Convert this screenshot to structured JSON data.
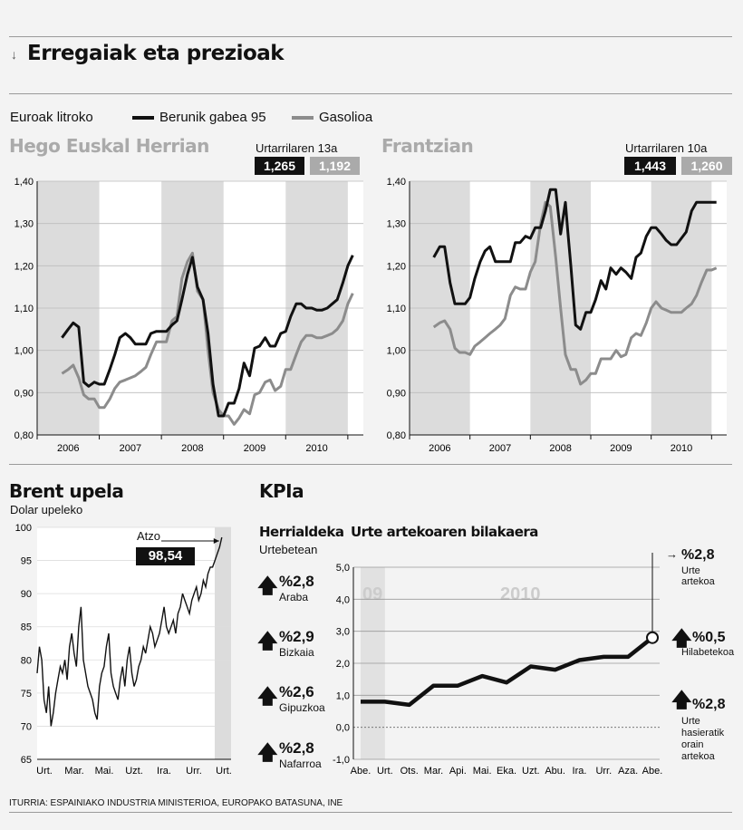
{
  "header": {
    "title": "Erregaiak eta prezioak",
    "arrow_icon": "down-arrow-icon"
  },
  "legend": {
    "unit": "Euroak litroko",
    "series1": "Berunik gabea 95",
    "series2": "Gasolioa"
  },
  "colors": {
    "petrol": "#111111",
    "diesel": "#8c8c8c",
    "shade": "#dcdcdc"
  },
  "chart_data": [
    {
      "id": "hego",
      "type": "line",
      "title": "Hego Euskal Herrian",
      "latest_date": "Urtarrilaren 13a",
      "latest_petrol": "1,265",
      "latest_diesel": "1,192",
      "ylim": [
        0.8,
        1.4
      ],
      "yticks": [
        "0,80",
        "0,90",
        "1,00",
        "1,10",
        "1,20",
        "1,30",
        "1,40"
      ],
      "xlabels": [
        "2006",
        "2007",
        "2008",
        "2009",
        "2010"
      ],
      "xlim": [
        2005.5,
        2010.75
      ],
      "shaded_years": [
        2006,
        2008,
        2010
      ],
      "series": [
        {
          "name": "Berunik gabea 95",
          "x": [
            2005.9,
            2006.0,
            2006.08,
            2006.17,
            2006.25,
            2006.33,
            2006.42,
            2006.5,
            2006.58,
            2006.67,
            2006.75,
            2006.83,
            2006.92,
            2007.0,
            2007.08,
            2007.17,
            2007.25,
            2007.33,
            2007.42,
            2007.5,
            2007.58,
            2007.67,
            2007.75,
            2007.83,
            2007.92,
            2008.0,
            2008.08,
            2008.17,
            2008.25,
            2008.33,
            2008.42,
            2008.5,
            2008.58,
            2008.67,
            2008.75,
            2008.83,
            2008.92,
            2009.0,
            2009.08,
            2009.17,
            2009.25,
            2009.33,
            2009.42,
            2009.5,
            2009.58,
            2009.67,
            2009.75,
            2009.83,
            2009.92,
            2010.0,
            2010.08,
            2010.17,
            2010.25,
            2010.33,
            2010.42,
            2010.5,
            2010.58
          ],
          "y": [
            1.03,
            1.05,
            1.065,
            1.055,
            0.925,
            0.915,
            0.925,
            0.92,
            0.92,
            0.955,
            0.99,
            1.03,
            1.04,
            1.03,
            1.015,
            1.015,
            1.015,
            1.04,
            1.045,
            1.045,
            1.045,
            1.06,
            1.07,
            1.12,
            1.18,
            1.22,
            1.15,
            1.12,
            1.04,
            0.92,
            0.845,
            0.845,
            0.875,
            0.875,
            0.91,
            0.97,
            0.94,
            1.005,
            1.01,
            1.03,
            1.01,
            1.01,
            1.04,
            1.045,
            1.08,
            1.11,
            1.11,
            1.1,
            1.1,
            1.095,
            1.095,
            1.1,
            1.11,
            1.12,
            1.16,
            1.2,
            1.225
          ]
        },
        {
          "name": "Gasolioa",
          "x": [
            2005.9,
            2006.0,
            2006.08,
            2006.17,
            2006.25,
            2006.33,
            2006.42,
            2006.5,
            2006.58,
            2006.67,
            2006.75,
            2006.83,
            2006.92,
            2007.0,
            2007.08,
            2007.17,
            2007.25,
            2007.33,
            2007.42,
            2007.5,
            2007.58,
            2007.67,
            2007.75,
            2007.83,
            2007.92,
            2008.0,
            2008.08,
            2008.17,
            2008.25,
            2008.33,
            2008.42,
            2008.5,
            2008.58,
            2008.67,
            2008.75,
            2008.83,
            2008.92,
            2009.0,
            2009.08,
            2009.17,
            2009.25,
            2009.33,
            2009.42,
            2009.5,
            2009.58,
            2009.67,
            2009.75,
            2009.83,
            2009.92,
            2010.0,
            2010.08,
            2010.17,
            2010.25,
            2010.33,
            2010.42,
            2010.5,
            2010.58
          ],
          "y": [
            0.945,
            0.955,
            0.965,
            0.935,
            0.895,
            0.885,
            0.885,
            0.865,
            0.865,
            0.885,
            0.91,
            0.925,
            0.93,
            0.935,
            0.94,
            0.95,
            0.96,
            0.99,
            1.02,
            1.02,
            1.02,
            1.07,
            1.08,
            1.17,
            1.21,
            1.23,
            1.14,
            1.12,
            1.0,
            0.9,
            0.86,
            0.845,
            0.845,
            0.825,
            0.84,
            0.86,
            0.85,
            0.895,
            0.9,
            0.925,
            0.93,
            0.905,
            0.915,
            0.955,
            0.955,
            0.99,
            1.02,
            1.035,
            1.035,
            1.03,
            1.03,
            1.035,
            1.04,
            1.05,
            1.07,
            1.11,
            1.135
          ]
        }
      ]
    },
    {
      "id": "frantzia",
      "type": "line",
      "title": "Frantzian",
      "latest_date": "Urtarrilaren 10a",
      "latest_petrol": "1,443",
      "latest_diesel": "1,260",
      "ylim": [
        0.8,
        1.4
      ],
      "yticks": [
        "0,80",
        "0,90",
        "1,00",
        "1,10",
        "1,20",
        "1,30",
        "1,40"
      ],
      "xlabels": [
        "2006",
        "2007",
        "2008",
        "2009",
        "2010"
      ],
      "xlim": [
        2005.5,
        2010.75
      ],
      "shaded_years": [
        2006,
        2008,
        2010
      ],
      "series": [
        {
          "name": "Berunik gabea 95",
          "x": [
            2005.9,
            2006.0,
            2006.08,
            2006.17,
            2006.25,
            2006.33,
            2006.42,
            2006.5,
            2006.58,
            2006.67,
            2006.75,
            2006.83,
            2006.92,
            2007.0,
            2007.08,
            2007.17,
            2007.25,
            2007.33,
            2007.42,
            2007.5,
            2007.58,
            2007.67,
            2007.75,
            2007.83,
            2007.92,
            2008.0,
            2008.08,
            2008.12,
            2008.17,
            2008.25,
            2008.33,
            2008.42,
            2008.5,
            2008.58,
            2008.67,
            2008.75,
            2008.83,
            2008.92,
            2009.0,
            2009.08,
            2009.17,
            2009.25,
            2009.33,
            2009.42,
            2009.5,
            2009.58,
            2009.67,
            2009.75,
            2009.83,
            2009.92,
            2010.0,
            2010.08,
            2010.17,
            2010.25,
            2010.33,
            2010.42,
            2010.5,
            2010.58
          ],
          "y": [
            1.22,
            1.245,
            1.245,
            1.16,
            1.11,
            1.11,
            1.11,
            1.125,
            1.17,
            1.21,
            1.235,
            1.245,
            1.21,
            1.21,
            1.21,
            1.21,
            1.255,
            1.255,
            1.27,
            1.265,
            1.29,
            1.29,
            1.33,
            1.38,
            1.38,
            1.275,
            1.35,
            1.28,
            1.2,
            1.06,
            1.05,
            1.09,
            1.09,
            1.12,
            1.165,
            1.145,
            1.195,
            1.18,
            1.195,
            1.185,
            1.17,
            1.22,
            1.23,
            1.27,
            1.29,
            1.29,
            1.275,
            1.26,
            1.25,
            1.25,
            1.265,
            1.28,
            1.33,
            1.35,
            1.35,
            1.35,
            1.35,
            1.35
          ]
        },
        {
          "name": "Gasolioa",
          "x": [
            2005.9,
            2006.0,
            2006.08,
            2006.17,
            2006.25,
            2006.33,
            2006.42,
            2006.5,
            2006.58,
            2006.67,
            2006.75,
            2006.83,
            2006.92,
            2007.0,
            2007.08,
            2007.17,
            2007.25,
            2007.33,
            2007.42,
            2007.5,
            2007.58,
            2007.67,
            2007.75,
            2007.83,
            2007.92,
            2008.0,
            2008.08,
            2008.17,
            2008.25,
            2008.33,
            2008.42,
            2008.5,
            2008.58,
            2008.67,
            2008.75,
            2008.83,
            2008.92,
            2009.0,
            2009.08,
            2009.17,
            2009.25,
            2009.33,
            2009.42,
            2009.5,
            2009.58,
            2009.67,
            2009.75,
            2009.83,
            2009.92,
            2010.0,
            2010.08,
            2010.17,
            2010.25,
            2010.33,
            2010.42,
            2010.5,
            2010.58
          ],
          "y": [
            1.055,
            1.065,
            1.07,
            1.05,
            1.005,
            0.995,
            0.995,
            0.99,
            1.01,
            1.02,
            1.03,
            1.04,
            1.05,
            1.06,
            1.075,
            1.13,
            1.15,
            1.145,
            1.145,
            1.185,
            1.21,
            1.3,
            1.35,
            1.34,
            1.22,
            1.1,
            0.99,
            0.955,
            0.955,
            0.92,
            0.93,
            0.945,
            0.945,
            0.98,
            0.98,
            0.98,
            1.0,
            0.985,
            0.99,
            1.03,
            1.04,
            1.035,
            1.065,
            1.1,
            1.115,
            1.1,
            1.095,
            1.09,
            1.09,
            1.09,
            1.1,
            1.11,
            1.13,
            1.16,
            1.19,
            1.19,
            1.195
          ]
        }
      ]
    },
    {
      "id": "brent",
      "type": "line",
      "title": "Brent upela",
      "subtitle": "Dolar upeleko",
      "annotation": "Atzo",
      "latest_value": "98,54",
      "ylim": [
        65,
        100
      ],
      "yticks": [
        "65",
        "70",
        "75",
        "80",
        "85",
        "90",
        "95",
        "100"
      ],
      "xlabels": [
        "Urt.",
        "Mar.",
        "Mai.",
        "Uzt.",
        "Ira.",
        "Urr.",
        "Urt."
      ],
      "xlim": [
        0,
        12.6
      ],
      "series": [
        {
          "name": "Brent",
          "x": [
            0.0,
            0.15,
            0.3,
            0.45,
            0.6,
            0.75,
            0.9,
            1.05,
            1.2,
            1.35,
            1.5,
            1.65,
            1.8,
            1.95,
            2.1,
            2.25,
            2.4,
            2.55,
            2.7,
            2.85,
            3.0,
            3.15,
            3.3,
            3.45,
            3.6,
            3.75,
            3.9,
            4.05,
            4.2,
            4.35,
            4.5,
            4.65,
            4.8,
            4.95,
            5.1,
            5.25,
            5.4,
            5.55,
            5.7,
            5.85,
            6.0,
            6.15,
            6.3,
            6.45,
            6.6,
            6.75,
            6.9,
            7.05,
            7.2,
            7.35,
            7.5,
            7.65,
            7.8,
            7.95,
            8.1,
            8.25,
            8.4,
            8.55,
            8.7,
            8.85,
            9.0,
            9.15,
            9.3,
            9.45,
            9.6,
            9.75,
            9.9,
            10.05,
            10.2,
            10.35,
            10.5,
            10.65,
            10.8,
            10.95,
            11.1,
            11.25,
            11.4,
            11.55,
            11.7,
            11.85,
            12.0
          ],
          "y": [
            78,
            82,
            80,
            74,
            72,
            76,
            70,
            72,
            75,
            77,
            79,
            78,
            80,
            77,
            82,
            84,
            81,
            79,
            85,
            88,
            80,
            78,
            76,
            75,
            74,
            72,
            71,
            76,
            78,
            79,
            82,
            84,
            78,
            76,
            75,
            74,
            77,
            79,
            76,
            80,
            82,
            78,
            76,
            77,
            79,
            80,
            82,
            81,
            83,
            85,
            84,
            82,
            83,
            84,
            86,
            88,
            85,
            84,
            85,
            86,
            84,
            87,
            88,
            90,
            89,
            88,
            87,
            89,
            90,
            91,
            89,
            90,
            92,
            91,
            93,
            94,
            94,
            95,
            96,
            97,
            98.5
          ]
        }
      ]
    },
    {
      "id": "kpia",
      "type": "line",
      "title": "Urte artekoaren bilakaera",
      "ylim": [
        -1.0,
        5.0
      ],
      "yticks": [
        "-1,0",
        "0,0",
        "1,0",
        "2,0",
        "3,0",
        "4,0",
        "5,0"
      ],
      "xlabels": [
        "Abe.",
        "Urt.",
        "Ots.",
        "Mar.",
        "Api.",
        "Mai.",
        "Eka.",
        "Uzt.",
        "Abu.",
        "Ira.",
        "Urr.",
        "Aza.",
        "Abe."
      ],
      "year_labels": [
        "09",
        "2010"
      ],
      "series": [
        {
          "name": "KPIa",
          "x": [
            0,
            1,
            2,
            3,
            4,
            5,
            6,
            7,
            8,
            9,
            10,
            11,
            12
          ],
          "y": [
            0.8,
            0.8,
            0.7,
            1.3,
            1.3,
            1.6,
            1.4,
            1.9,
            1.8,
            2.1,
            2.2,
            2.2,
            2.8
          ]
        }
      ],
      "last_value": "%2,8",
      "last_label": "Urte artekoa"
    }
  ],
  "kpia": {
    "title": "KPIa",
    "regions_title": "Herrialdeka",
    "regions_subtitle": "Urtebetean",
    "regions": [
      {
        "value": "%2,8",
        "name": "Araba"
      },
      {
        "value": "%2,9",
        "name": "Bizkaia"
      },
      {
        "value": "%2,6",
        "name": "Gipuzkoa"
      },
      {
        "value": "%2,8",
        "name": "Nafarroa"
      }
    ],
    "right": [
      {
        "value": "%2,8",
        "label": "Urte artekoa"
      },
      {
        "value": "%0,5",
        "label": "Hilabetekoa"
      },
      {
        "value": "%2,8",
        "label": "Urte hasieratik orain artekoa"
      }
    ]
  },
  "source": "ITURRIA: ESPAINIAKO INDUSTRIA MINISTERIOA, EUROPAKO BATASUNA, INE"
}
